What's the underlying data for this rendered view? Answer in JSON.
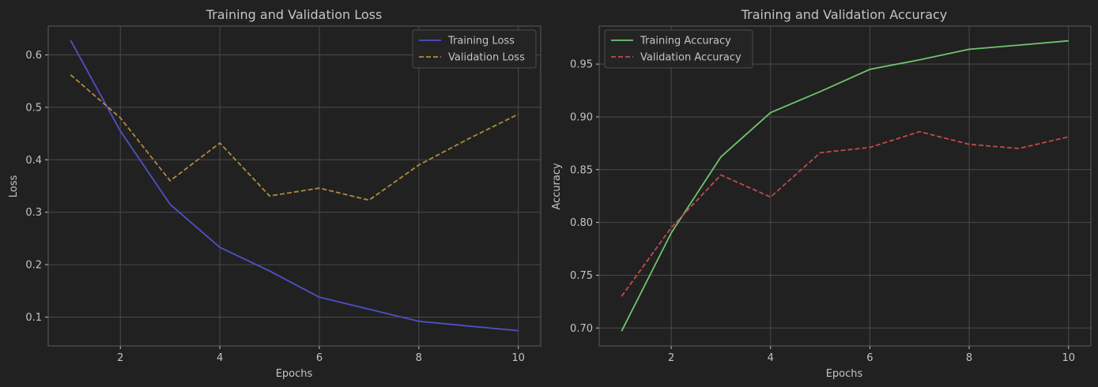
{
  "colors": {
    "background": "#212121",
    "axes_frame": "#5a5a5a",
    "grid": "#4a4a4a",
    "text": "#c4c4c4",
    "legend_bg": "#242424",
    "legend_border": "#4d4d4d"
  },
  "chart_data": [
    {
      "type": "line",
      "title": "Training and Validation Loss",
      "xlabel": "Epochs",
      "ylabel": "Loss",
      "xlim": [
        0.55,
        10.45
      ],
      "ylim": [
        0.045,
        0.655
      ],
      "xticks": [
        2,
        4,
        6,
        8,
        10
      ],
      "yticks": [
        0.1,
        0.2,
        0.3,
        0.4,
        0.5,
        0.6
      ],
      "grid": true,
      "legend_position": "top-right",
      "x": [
        1,
        2,
        3,
        4,
        5,
        6,
        7,
        8,
        9,
        10
      ],
      "series": [
        {
          "name": "Training Loss",
          "color": "#5050c8",
          "dash": "solid",
          "values": [
            0.628,
            0.455,
            0.315,
            0.233,
            0.188,
            0.138,
            0.115,
            0.092,
            0.083,
            0.074
          ]
        },
        {
          "name": "Validation Loss",
          "color": "#b08a3c",
          "dash": "dashed",
          "values": [
            0.562,
            0.48,
            0.36,
            0.432,
            0.331,
            0.346,
            0.323,
            0.39,
            0.44,
            0.487
          ]
        }
      ]
    },
    {
      "type": "line",
      "title": "Training and Validation Accuracy",
      "xlabel": "Epochs",
      "ylabel": "Accuracy",
      "xlim": [
        0.55,
        10.45
      ],
      "ylim": [
        0.683,
        0.986
      ],
      "xticks": [
        2,
        4,
        6,
        8,
        10
      ],
      "yticks": [
        0.7,
        0.75,
        0.8,
        0.85,
        0.9,
        0.95
      ],
      "ytick_labels": [
        "0.70",
        "0.75",
        "0.80",
        "0.85",
        "0.90",
        "0.95"
      ],
      "grid": true,
      "legend_position": "top-left",
      "x": [
        1,
        2,
        3,
        4,
        5,
        6,
        7,
        8,
        9,
        10
      ],
      "series": [
        {
          "name": "Training Accuracy",
          "color": "#6fc46f",
          "dash": "solid",
          "values": [
            0.697,
            0.79,
            0.862,
            0.904,
            0.924,
            0.945,
            0.954,
            0.964,
            0.968,
            0.972
          ]
        },
        {
          "name": "Validation Accuracy",
          "color": "#c44a4a",
          "dash": "dashed",
          "values": [
            0.73,
            0.795,
            0.845,
            0.824,
            0.866,
            0.871,
            0.886,
            0.874,
            0.87,
            0.881
          ]
        }
      ]
    }
  ]
}
